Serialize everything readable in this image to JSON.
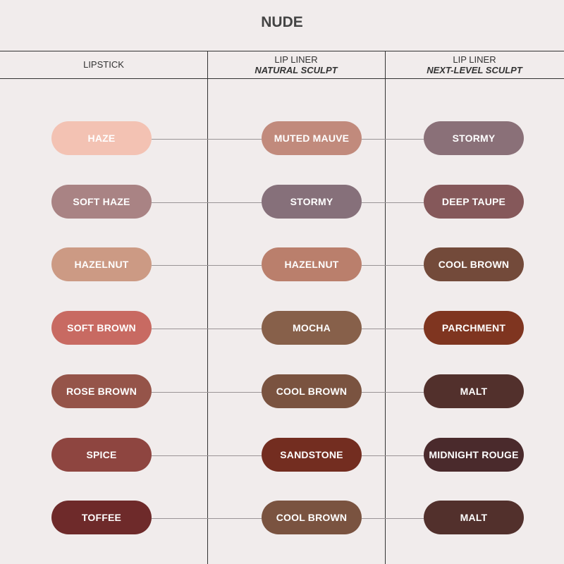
{
  "title": "NUDE",
  "headers": [
    {
      "line1": "LIPSTICK",
      "line2": ""
    },
    {
      "line1": "LIP LINER",
      "line2": "NATURAL SCULPT"
    },
    {
      "line1": "LIP LINER",
      "line2": "NEXT-LEVEL SCULPT"
    }
  ],
  "rows": [
    [
      {
        "name": "HAZE",
        "color": "#f3c2b3"
      },
      {
        "name": "MUTED MAUVE",
        "color": "#c18a7c"
      },
      {
        "name": "STORMY",
        "color": "#8a7078"
      }
    ],
    [
      {
        "name": "SOFT HAZE",
        "color": "#a98384"
      },
      {
        "name": "STORMY",
        "color": "#86707a"
      },
      {
        "name": "DEEP TAUPE",
        "color": "#85585a"
      }
    ],
    [
      {
        "name": "HAZELNUT",
        "color": "#cc9a84"
      },
      {
        "name": "HAZELNUT",
        "color": "#ba7f6c"
      },
      {
        "name": "COOL BROWN",
        "color": "#734a3a"
      }
    ],
    [
      {
        "name": "SOFT BROWN",
        "color": "#c86a62"
      },
      {
        "name": "MOCHA",
        "color": "#87604a"
      },
      {
        "name": "PARCHMENT",
        "color": "#7f3520"
      }
    ],
    [
      {
        "name": "ROSE BROWN",
        "color": "#955449"
      },
      {
        "name": "COOL BROWN",
        "color": "#7a5340"
      },
      {
        "name": "MALT",
        "color": "#52302c"
      }
    ],
    [
      {
        "name": "SPICE",
        "color": "#8e4540"
      },
      {
        "name": "SANDSTONE",
        "color": "#732d20"
      },
      {
        "name": "MIDNIGHT ROUGE",
        "color": "#4a2a2c"
      }
    ],
    [
      {
        "name": "TOFFEE",
        "color": "#6e2a2a"
      },
      {
        "name": "COOL BROWN",
        "color": "#7a5340"
      },
      {
        "name": "MALT",
        "color": "#52302c"
      }
    ]
  ]
}
